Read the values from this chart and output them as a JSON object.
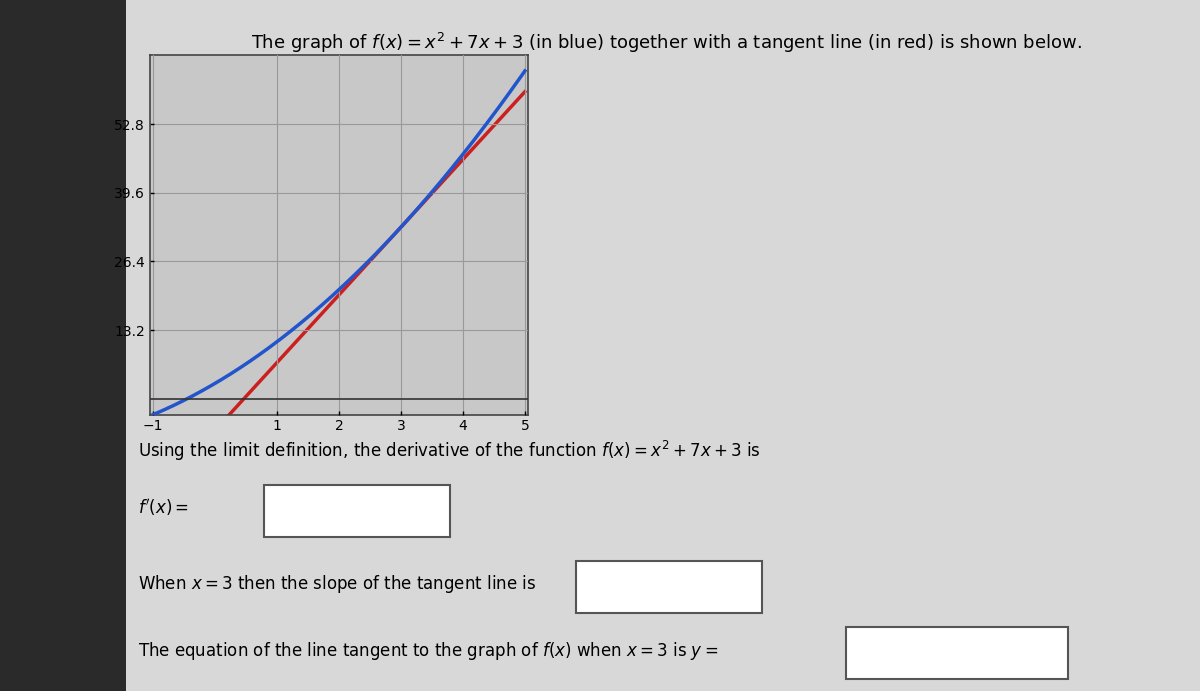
{
  "title": "The graph of $f(x) = x^2 + 7x + 3$ (in blue) together with a tangent line (in red) is shown below.",
  "x_min": -1,
  "x_max": 5,
  "y_min": -3,
  "y_max": 66,
  "yticks": [
    13.2,
    26.4,
    39.6,
    52.8
  ],
  "xticks": [
    -1,
    1,
    2,
    3,
    4,
    5
  ],
  "curve_color": "#2255cc",
  "tangent_color": "#cc2020",
  "bg_color": "#c0c0c0",
  "content_bg": "#d8d8d8",
  "left_margin_color": "#2a2a2a",
  "plot_bg_color": "#c8c8c8",
  "grid_color": "#999999",
  "font_size_title": 13,
  "font_size_text": 12,
  "font_size_tick": 10
}
